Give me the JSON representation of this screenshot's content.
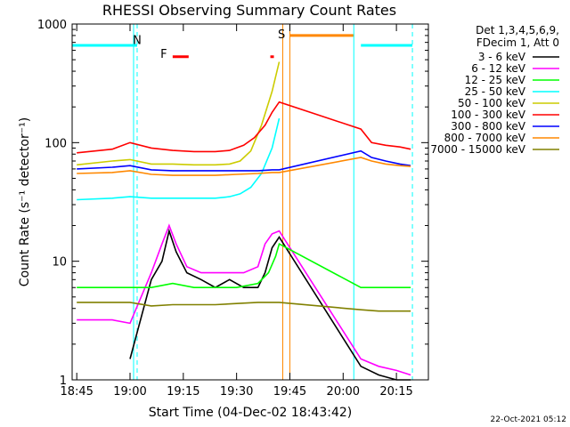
{
  "chart_data": {
    "type": "line",
    "title": "RHESSI Observing Summary Count Rates",
    "xlabel": "Start Time (04-Dec-02 18:43:42)",
    "ylabel": "Count Rate (s⁻¹ detector⁻¹)",
    "ylog": true,
    "ylim": [
      1,
      1000
    ],
    "xlim": [
      "18:43:42",
      "20:24:00"
    ],
    "x_ticks": [
      "18:45",
      "19:00",
      "19:15",
      "19:30",
      "19:45",
      "20:00",
      "20:15"
    ],
    "y_ticks": [
      "1",
      "10",
      "100",
      "1000"
    ],
    "footer": "22-Oct-2021 05:12",
    "legend_header": [
      "Det 1,3,4,5,6,9,",
      "FDecim 1, Att 0"
    ],
    "flags": {
      "night_label": "N",
      "saa_label": "S",
      "flare_label": "F",
      "night_periods": [
        [
          "18:43:42",
          "19:02:00"
        ],
        [
          "20:05:00",
          "20:19:30"
        ]
      ],
      "saa_period": [
        "19:45:00",
        "20:03:00"
      ],
      "flare_periods": [
        [
          "19:12:00",
          "19:16:30"
        ],
        [
          "19:39:30",
          "19:40:30"
        ]
      ]
    },
    "gaps": [
      [
        "19:02:00",
        "19:04:00"
      ],
      [
        "19:42:30",
        "20:05:30"
      ]
    ],
    "series": [
      {
        "name": "3 - 6 keV",
        "color": "#000000",
        "x": [
          "19:00",
          "19:06",
          "19:09",
          "19:11",
          "19:13",
          "19:16",
          "19:20",
          "19:24",
          "19:28",
          "19:32",
          "19:36",
          "19:38",
          "19:40",
          "19:42",
          "20:05",
          "20:10",
          "20:15",
          "20:19"
        ],
        "y": [
          1.5,
          7,
          10,
          18,
          12,
          8,
          7,
          6,
          7,
          6,
          6,
          8,
          13,
          16,
          1.3,
          1.1,
          1.0,
          1.0
        ]
      },
      {
        "name": "6 - 12 keV",
        "color": "#ff00ff",
        "x": [
          "18:45",
          "18:55",
          "19:00",
          "19:06",
          "19:09",
          "19:11",
          "19:13",
          "19:16",
          "19:20",
          "19:24",
          "19:28",
          "19:32",
          "19:36",
          "19:38",
          "19:40",
          "19:42",
          "20:05",
          "20:10",
          "20:15",
          "20:19"
        ],
        "y": [
          3.2,
          3.2,
          3.0,
          8,
          14,
          20,
          14,
          9,
          8,
          8,
          8,
          8,
          9,
          14,
          17,
          18,
          1.5,
          1.3,
          1.2,
          1.1
        ]
      },
      {
        "name": "12 - 25 keV",
        "color": "#00ff00",
        "x": [
          "18:45",
          "18:55",
          "19:00",
          "19:06",
          "19:12",
          "19:18",
          "19:24",
          "19:30",
          "19:36",
          "19:39",
          "19:41",
          "19:42",
          "20:05",
          "20:10",
          "20:15",
          "20:19"
        ],
        "y": [
          6,
          6,
          6,
          6,
          6.5,
          6,
          6,
          6,
          6.5,
          8,
          11,
          14,
          6,
          6,
          6,
          6
        ]
      },
      {
        "name": "25 - 50 keV",
        "color": "#00ffff",
        "x": [
          "18:45",
          "18:55",
          "19:00",
          "19:06",
          "19:12",
          "19:18",
          "19:24",
          "19:28",
          "19:31",
          "19:34",
          "19:37",
          "19:40",
          "19:42"
        ],
        "y": [
          33,
          34,
          35,
          34,
          34,
          34,
          34,
          35,
          37,
          42,
          55,
          90,
          160
        ]
      },
      {
        "name": "50 - 100 keV",
        "color": "#cccc00",
        "x": [
          "18:45",
          "18:55",
          "19:00",
          "19:06",
          "19:12",
          "19:18",
          "19:24",
          "19:28",
          "19:31",
          "19:34",
          "19:37",
          "19:40",
          "19:42"
        ],
        "y": [
          65,
          70,
          72,
          66,
          66,
          65,
          65,
          66,
          70,
          85,
          140,
          270,
          480
        ]
      },
      {
        "name": "100 - 300 keV",
        "color": "#ff0000",
        "x": [
          "18:45",
          "18:55",
          "19:00",
          "19:06",
          "19:12",
          "19:18",
          "19:24",
          "19:28",
          "19:32",
          "19:35",
          "19:38",
          "19:40",
          "19:42",
          "20:05",
          "20:08",
          "20:12",
          "20:16",
          "20:19"
        ],
        "y": [
          82,
          88,
          100,
          90,
          86,
          84,
          84,
          86,
          95,
          110,
          140,
          180,
          220,
          130,
          100,
          95,
          92,
          88
        ]
      },
      {
        "name": "300 - 800 keV",
        "color": "#0000ff",
        "x": [
          "18:45",
          "18:55",
          "19:00",
          "19:06",
          "19:12",
          "19:18",
          "19:24",
          "19:30",
          "19:36",
          "19:40",
          "19:42",
          "20:05",
          "20:08",
          "20:12",
          "20:16",
          "20:19"
        ],
        "y": [
          60,
          62,
          64,
          59,
          58,
          58,
          58,
          58,
          58,
          59,
          59,
          85,
          75,
          70,
          66,
          64
        ]
      },
      {
        "name": "800 - 7000 keV",
        "color": "#ff8800",
        "x": [
          "18:45",
          "18:55",
          "19:00",
          "19:06",
          "19:12",
          "19:18",
          "19:24",
          "19:30",
          "19:36",
          "19:40",
          "19:42",
          "20:05",
          "20:08",
          "20:12",
          "20:16",
          "20:19"
        ],
        "y": [
          55,
          56,
          58,
          54,
          53,
          53,
          53,
          54,
          55,
          56,
          56,
          75,
          70,
          66,
          64,
          63
        ]
      },
      {
        "name": "7000 - 15000 keV",
        "color": "#808000",
        "x": [
          "18:45",
          "18:55",
          "19:00",
          "19:06",
          "19:12",
          "19:18",
          "19:24",
          "19:30",
          "19:36",
          "19:40",
          "19:42",
          "20:05",
          "20:10",
          "20:15",
          "20:19"
        ],
        "y": [
          4.5,
          4.5,
          4.5,
          4.2,
          4.3,
          4.3,
          4.3,
          4.4,
          4.5,
          4.5,
          4.5,
          3.9,
          3.8,
          3.8,
          3.8
        ]
      }
    ]
  }
}
